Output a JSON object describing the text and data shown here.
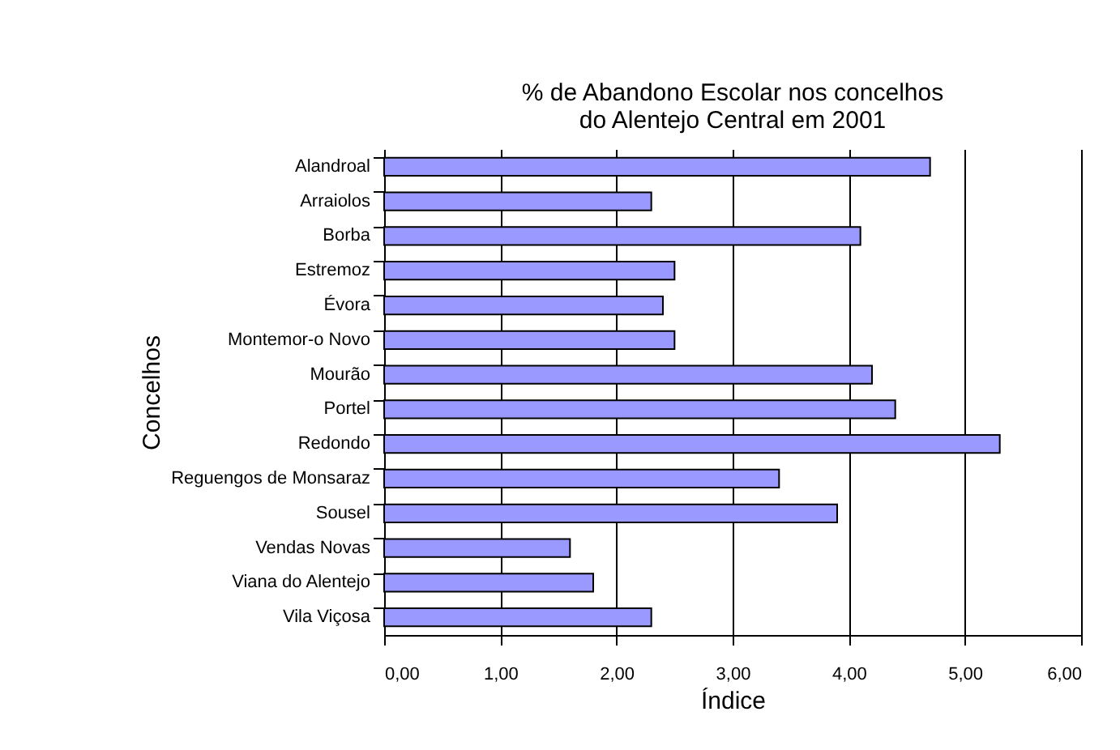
{
  "chart_data": {
    "type": "bar",
    "orientation": "horizontal",
    "title": "% de Abandono Escolar nos concelhos\ndo Alentejo Central em 2001",
    "xlabel": "Índice",
    "ylabel": "Concelhos",
    "categories": [
      "Alandroal",
      "Arraiolos",
      "Borba",
      "Estremoz",
      "Évora",
      "Montemor-o Novo",
      "Mourão",
      "Portel",
      "Redondo",
      "Reguengos de Monsaraz",
      "Sousel",
      "Vendas Novas",
      "Viana do Alentejo",
      "Vila Viçosa"
    ],
    "values": [
      4.7,
      2.3,
      4.1,
      2.5,
      2.4,
      2.5,
      4.2,
      4.4,
      5.3,
      3.4,
      3.9,
      1.6,
      1.8,
      2.3
    ],
    "color": "#9999ff",
    "xlim": [
      0,
      6
    ],
    "xticks": [
      {
        "value": 0,
        "label": "0,00"
      },
      {
        "value": 1,
        "label": "1,00"
      },
      {
        "value": 2,
        "label": "2,00"
      },
      {
        "value": 3,
        "label": "3,00"
      },
      {
        "value": 4,
        "label": "4,00"
      },
      {
        "value": 5,
        "label": "5,00"
      },
      {
        "value": 6,
        "label": "6,00"
      }
    ],
    "grid": "x"
  }
}
